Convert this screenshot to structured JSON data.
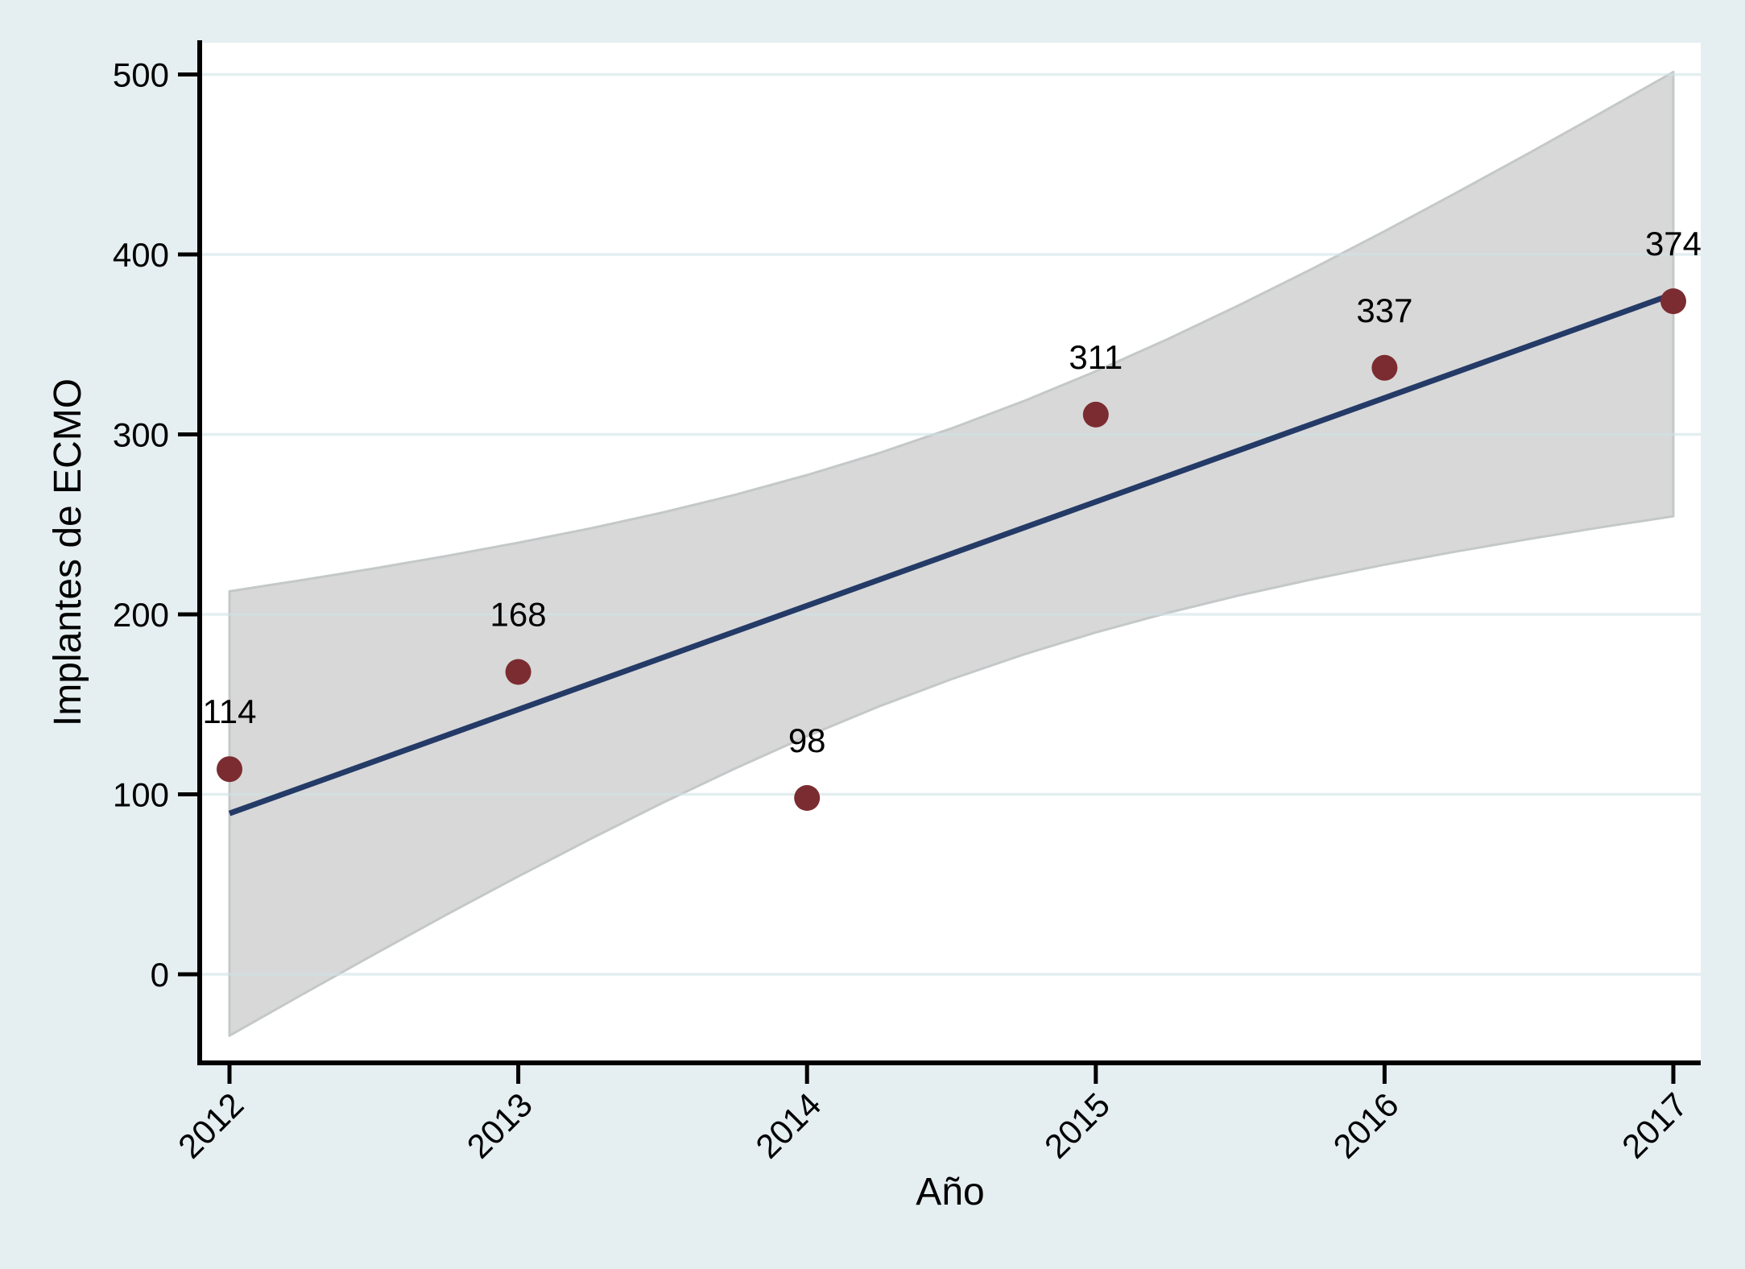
{
  "figure": {
    "background_color": "#e5eef1",
    "plot_background": "#ffffff"
  },
  "chart_data": {
    "type": "scatter",
    "title": "",
    "xlabel": "Año",
    "ylabel": "Implantes de ECMO",
    "x": [
      2012,
      2013,
      2014,
      2015,
      2016,
      2017
    ],
    "values": [
      114,
      168,
      98,
      311,
      337,
      374
    ],
    "point_labels": [
      "114",
      "168",
      "98",
      "311",
      "337",
      "374"
    ],
    "x_tick_labels": [
      "2012",
      "2013",
      "2014",
      "2015",
      "2016",
      "2017"
    ],
    "y_ticks": [
      0,
      100,
      200,
      300,
      400,
      500
    ],
    "y_tick_labels": [
      "0",
      "100",
      "200",
      "300",
      "400",
      "500"
    ],
    "xlim": [
      2011.9,
      2017.1
    ],
    "ylim": [
      -50,
      518
    ],
    "grid": "horizontal-only",
    "legend": "none",
    "fit_line": {
      "x": [
        2012,
        2017
      ],
      "y": [
        89.4,
        378.0
      ]
    },
    "ci_band": {
      "x": [
        2012,
        2012.25,
        2012.5,
        2012.75,
        2013,
        2013.25,
        2013.5,
        2013.75,
        2014,
        2014.25,
        2014.5,
        2014.75,
        2015,
        2015.25,
        2015.5,
        2015.75,
        2016,
        2016.25,
        2016.5,
        2016.75,
        2017
      ],
      "upper": [
        212.8,
        219.0,
        225.5,
        232.4,
        239.8,
        247.8,
        256.6,
        266.4,
        277.4,
        289.6,
        303.3,
        318.5,
        335.1,
        353.0,
        372.1,
        392.1,
        412.9,
        434.4,
        456.3,
        478.7,
        501.4
      ],
      "lower": [
        -34.1,
        -11.4,
        11.0,
        33.0,
        54.4,
        75.2,
        95.3,
        114.3,
        132.3,
        148.9,
        164.0,
        177.7,
        190.0,
        200.9,
        210.7,
        219.5,
        227.6,
        235.0,
        241.9,
        248.4,
        254.5
      ]
    },
    "colors": {
      "marker": "#7b2c31",
      "fit_line": "#243a67",
      "ci_band_fill": "#d8d8d8",
      "ci_band_edge": "#c4c8c9",
      "gridline": "rgba(208,226,230,0.6)",
      "axis": "#000000",
      "text": "#000000"
    }
  }
}
